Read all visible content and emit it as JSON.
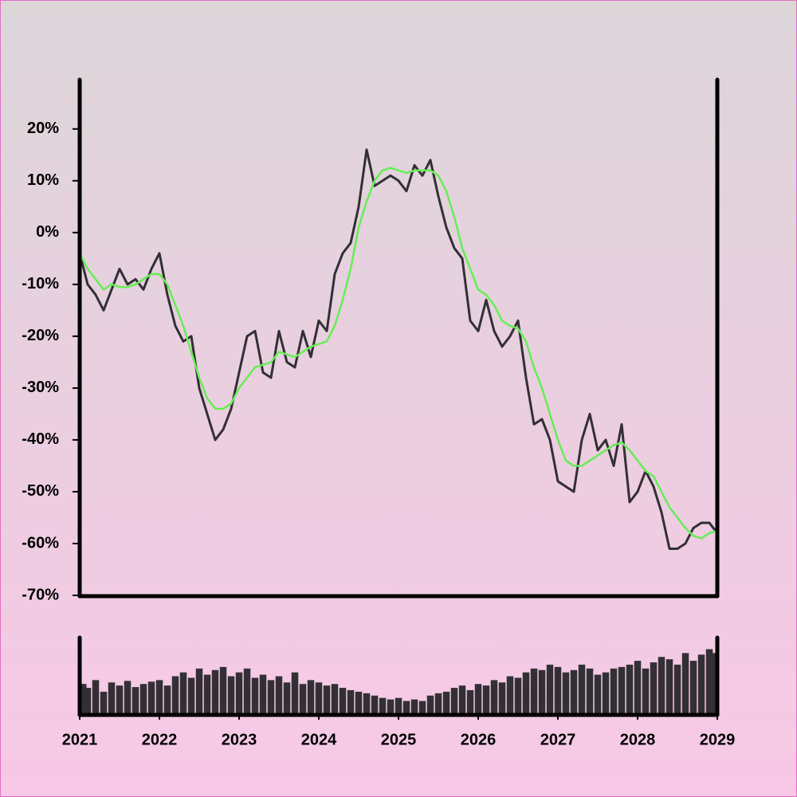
{
  "chart_data": [
    {
      "type": "line",
      "x": [
        2021.0,
        2021.1,
        2021.2,
        2021.3,
        2021.4,
        2021.5,
        2021.6,
        2021.7,
        2021.8,
        2021.9,
        2022.0,
        2022.1,
        2022.2,
        2022.3,
        2022.4,
        2022.5,
        2022.6,
        2022.7,
        2022.8,
        2022.9,
        2023.0,
        2023.1,
        2023.2,
        2023.3,
        2023.4,
        2023.5,
        2023.6,
        2023.7,
        2023.8,
        2023.9,
        2024.0,
        2024.1,
        2024.2,
        2024.3,
        2024.4,
        2024.5,
        2024.6,
        2024.7,
        2024.8,
        2024.9,
        2025.0,
        2025.1,
        2025.2,
        2025.3,
        2025.4,
        2025.5,
        2025.6,
        2025.7,
        2025.8,
        2025.9,
        2026.0,
        2026.1,
        2026.2,
        2026.3,
        2026.4,
        2026.5,
        2026.6,
        2026.7,
        2026.8,
        2026.9,
        2027.0,
        2027.1,
        2027.2,
        2027.3,
        2027.4,
        2027.5,
        2027.6,
        2027.7,
        2027.8,
        2027.9,
        2028.0,
        2028.1,
        2028.2,
        2028.3,
        2028.4,
        2028.5,
        2028.6,
        2028.7,
        2028.8,
        2028.9,
        2029.0
      ],
      "series": [
        {
          "color": "#333035",
          "values": [
            -4,
            -10,
            -12,
            -15,
            -11,
            -7,
            -10,
            -9,
            -11,
            -7,
            -4,
            -12,
            -18,
            -21,
            -20,
            -30,
            -35,
            -40,
            -38,
            -34,
            -27,
            -20,
            -19,
            -27,
            -28,
            -19,
            -25,
            -26,
            -19,
            -24,
            -17,
            -19,
            -8,
            -4,
            -2,
            5,
            16,
            9,
            10,
            11,
            10,
            8,
            13,
            11,
            14,
            7,
            1,
            -3,
            -5,
            -17,
            -19,
            -13,
            -19,
            -22,
            -20,
            -17,
            -28,
            -37,
            -36,
            -40,
            -48,
            -49,
            -50,
            -40,
            -35,
            -42,
            -40,
            -45,
            -37,
            -52,
            -50,
            -46,
            -49,
            -54,
            -61,
            -61,
            -60,
            -57,
            -56,
            -56,
            -58
          ]
        },
        {
          "color": "#66ee55",
          "values": [
            -4,
            -7,
            -9,
            -11,
            -10,
            -10.5,
            -10.5,
            -10,
            -9,
            -8,
            -8,
            -10,
            -14,
            -18,
            -23,
            -28,
            -32,
            -34,
            -34,
            -33,
            -30,
            -28,
            -26,
            -25.5,
            -25,
            -23,
            -23.5,
            -24,
            -23,
            -22,
            -21.5,
            -21,
            -18,
            -13,
            -7,
            1,
            6,
            10,
            12,
            12.5,
            12,
            11.5,
            12,
            12,
            12,
            11,
            8,
            3,
            -3,
            -7,
            -11,
            -12,
            -14,
            -17,
            -18,
            -18.5,
            -21,
            -26,
            -30,
            -35,
            -40,
            -44,
            -45,
            -45,
            -44,
            -43,
            -42,
            -41,
            -40.5,
            -42,
            -44,
            -46,
            -47,
            -50,
            -53,
            -55,
            -57,
            -58.5,
            -59,
            -58,
            -57.5
          ]
        }
      ],
      "xlim": [
        2021,
        2029
      ],
      "ylim": [
        -70,
        29.5
      ],
      "yticks": [
        {
          "value": -70,
          "label": "-70%"
        },
        {
          "value": -60,
          "label": "-60%"
        },
        {
          "value": -50,
          "label": "-50%"
        },
        {
          "value": -40,
          "label": "-40%"
        },
        {
          "value": -30,
          "label": "-30%"
        },
        {
          "value": -20,
          "label": "-20%"
        },
        {
          "value": -10,
          "label": "-10%"
        },
        {
          "value": 0,
          "label": "0%"
        },
        {
          "value": 10,
          "label": "10%"
        },
        {
          "value": 20,
          "label": "20%"
        }
      ]
    },
    {
      "type": "bar",
      "x": [
        2021.0,
        2021.1,
        2021.2,
        2021.3,
        2021.4,
        2021.5,
        2021.6,
        2021.7,
        2021.8,
        2021.9,
        2022.0,
        2022.1,
        2022.2,
        2022.3,
        2022.4,
        2022.5,
        2022.6,
        2022.7,
        2022.8,
        2022.9,
        2023.0,
        2023.1,
        2023.2,
        2023.3,
        2023.4,
        2023.5,
        2023.6,
        2023.7,
        2023.8,
        2023.9,
        2024.0,
        2024.1,
        2024.2,
        2024.3,
        2024.4,
        2024.5,
        2024.6,
        2024.7,
        2024.8,
        2024.9,
        2025.0,
        2025.1,
        2025.2,
        2025.3,
        2025.4,
        2025.5,
        2025.6,
        2025.7,
        2025.8,
        2025.9,
        2026.0,
        2026.1,
        2026.2,
        2026.3,
        2026.4,
        2026.5,
        2026.6,
        2026.7,
        2026.8,
        2026.9,
        2027.0,
        2027.1,
        2027.2,
        2027.3,
        2027.4,
        2027.5,
        2027.6,
        2027.7,
        2027.8,
        2027.9,
        2028.0,
        2028.1,
        2028.2,
        2028.3,
        2028.4,
        2028.5,
        2028.6,
        2028.7,
        2028.8,
        2028.9,
        2029.0
      ],
      "values": [
        40,
        35,
        45,
        30,
        42,
        38,
        44,
        36,
        40,
        43,
        45,
        38,
        50,
        55,
        48,
        60,
        52,
        58,
        62,
        50,
        55,
        60,
        48,
        52,
        45,
        50,
        42,
        55,
        40,
        45,
        42,
        38,
        40,
        35,
        32,
        30,
        28,
        25,
        22,
        20,
        22,
        18,
        20,
        18,
        25,
        28,
        30,
        35,
        38,
        32,
        40,
        38,
        45,
        42,
        50,
        48,
        55,
        60,
        58,
        65,
        62,
        55,
        58,
        65,
        60,
        52,
        55,
        60,
        62,
        65,
        70,
        60,
        68,
        75,
        72,
        65,
        80,
        70,
        78,
        85,
        80
      ],
      "color": "#333035",
      "xlim": [
        2021,
        2029
      ],
      "ylim": [
        0,
        100
      ],
      "xticks": [
        2021,
        2022,
        2023,
        2024,
        2025,
        2026,
        2027,
        2028,
        2029
      ]
    }
  ]
}
